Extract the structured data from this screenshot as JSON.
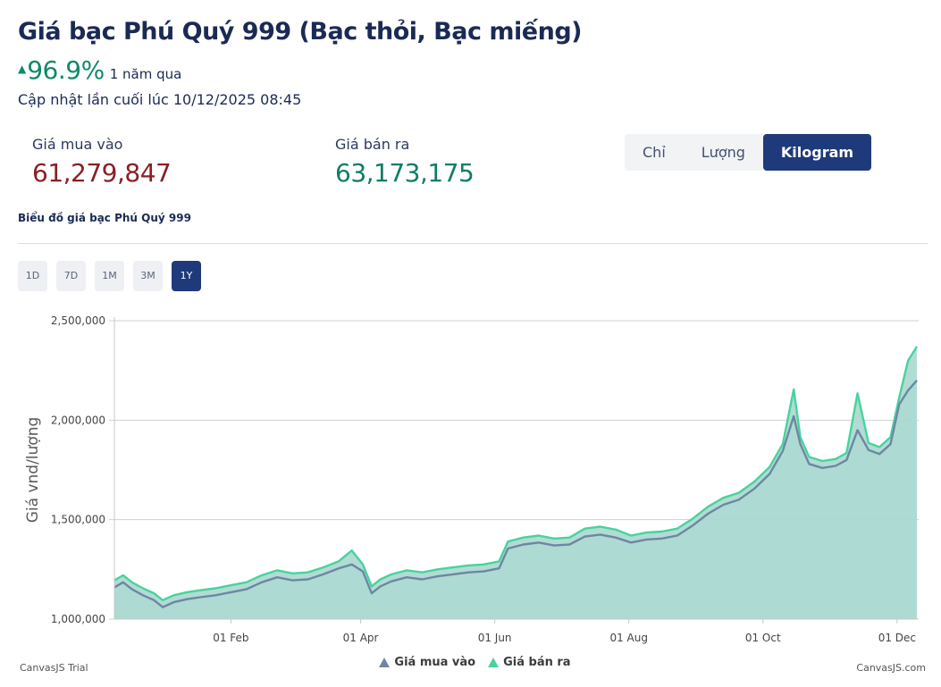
{
  "header": {
    "title": "Giá bạc Phú Quý 999 (Bạc thỏi, Bạc miếng)",
    "change_arrow": "▲",
    "change_pct": "96.9%",
    "change_period": "1 năm qua",
    "updated": "Cập nhật lần cuối lúc 10/12/2025 08:45"
  },
  "prices": {
    "buy_label": "Giá mua vào",
    "buy_value": "61,279,847",
    "sell_label": "Giá bán ra",
    "sell_value": "63,173,175"
  },
  "unit_tabs": [
    {
      "label": "Chỉ",
      "active": false
    },
    {
      "label": "Lượng",
      "active": false
    },
    {
      "label": "Kilogram",
      "active": true
    }
  ],
  "chart_heading": "Biểu đồ giá bạc Phú Quý 999",
  "range_tabs": [
    {
      "label": "1D",
      "active": false
    },
    {
      "label": "7D",
      "active": false
    },
    {
      "label": "1M",
      "active": false
    },
    {
      "label": "3M",
      "active": false
    },
    {
      "label": "1Y",
      "active": true
    }
  ],
  "colors": {
    "buy_series": "#6f86a3",
    "sell_series": "#47d49c",
    "area_fill": "#a9d8cf",
    "accent": "#1f3a7a",
    "up": "#0f8a6a"
  },
  "chart_data": {
    "type": "area",
    "ylabel": "Giá vnd/lượng",
    "ylim": [
      1000000,
      2500000
    ],
    "y_ticks": [
      1000000,
      1500000,
      2000000,
      2500000
    ],
    "y_tick_labels": [
      "1,000,000",
      "1,500,000",
      "2,000,000",
      "2,500,000"
    ],
    "x_range": [
      "2024-12-10",
      "2025-12-10"
    ],
    "x_ticks": [
      "2025-02-01",
      "2025-04-01",
      "2025-06-01",
      "2025-08-01",
      "2025-10-01",
      "2025-12-01"
    ],
    "x_tick_labels": [
      "01 Feb",
      "01 Apr",
      "01 Jun",
      "01 Aug",
      "01 Oct",
      "01 Dec"
    ],
    "grid": true,
    "legend_placement": "bottom-center",
    "series": [
      {
        "name": "Giá mua vào",
        "points": [
          [
            "2024-12-10",
            1160000
          ],
          [
            "2024-12-14",
            1185000
          ],
          [
            "2024-12-18",
            1150000
          ],
          [
            "2024-12-23",
            1120000
          ],
          [
            "2024-12-28",
            1095000
          ],
          [
            "2025-01-01",
            1060000
          ],
          [
            "2025-01-06",
            1085000
          ],
          [
            "2025-01-12",
            1100000
          ],
          [
            "2025-01-18",
            1110000
          ],
          [
            "2025-01-25",
            1120000
          ],
          [
            "2025-02-01",
            1135000
          ],
          [
            "2025-02-08",
            1150000
          ],
          [
            "2025-02-15",
            1185000
          ],
          [
            "2025-02-22",
            1210000
          ],
          [
            "2025-03-01",
            1195000
          ],
          [
            "2025-03-08",
            1200000
          ],
          [
            "2025-03-15",
            1225000
          ],
          [
            "2025-03-22",
            1255000
          ],
          [
            "2025-03-28",
            1275000
          ],
          [
            "2025-04-02",
            1240000
          ],
          [
            "2025-04-06",
            1130000
          ],
          [
            "2025-04-10",
            1165000
          ],
          [
            "2025-04-15",
            1190000
          ],
          [
            "2025-04-22",
            1210000
          ],
          [
            "2025-04-29",
            1200000
          ],
          [
            "2025-05-06",
            1215000
          ],
          [
            "2025-05-13",
            1225000
          ],
          [
            "2025-05-20",
            1235000
          ],
          [
            "2025-05-27",
            1240000
          ],
          [
            "2025-06-03",
            1255000
          ],
          [
            "2025-06-07",
            1355000
          ],
          [
            "2025-06-14",
            1375000
          ],
          [
            "2025-06-21",
            1385000
          ],
          [
            "2025-06-28",
            1370000
          ],
          [
            "2025-07-05",
            1375000
          ],
          [
            "2025-07-12",
            1415000
          ],
          [
            "2025-07-19",
            1425000
          ],
          [
            "2025-07-26",
            1410000
          ],
          [
            "2025-08-02",
            1385000
          ],
          [
            "2025-08-09",
            1400000
          ],
          [
            "2025-08-16",
            1405000
          ],
          [
            "2025-08-23",
            1420000
          ],
          [
            "2025-08-30",
            1470000
          ],
          [
            "2025-09-06",
            1530000
          ],
          [
            "2025-09-13",
            1575000
          ],
          [
            "2025-09-20",
            1600000
          ],
          [
            "2025-09-27",
            1655000
          ],
          [
            "2025-10-04",
            1730000
          ],
          [
            "2025-10-10",
            1845000
          ],
          [
            "2025-10-15",
            2020000
          ],
          [
            "2025-10-18",
            1880000
          ],
          [
            "2025-10-22",
            1780000
          ],
          [
            "2025-10-28",
            1760000
          ],
          [
            "2025-11-03",
            1770000
          ],
          [
            "2025-11-08",
            1800000
          ],
          [
            "2025-11-13",
            1950000
          ],
          [
            "2025-11-18",
            1850000
          ],
          [
            "2025-11-23",
            1830000
          ],
          [
            "2025-11-28",
            1880000
          ],
          [
            "2025-12-02",
            2080000
          ],
          [
            "2025-12-06",
            2150000
          ],
          [
            "2025-12-10",
            2200000
          ]
        ]
      },
      {
        "name": "Giá bán ra",
        "points": [
          [
            "2024-12-10",
            1195000
          ],
          [
            "2024-12-14",
            1220000
          ],
          [
            "2024-12-18",
            1185000
          ],
          [
            "2024-12-23",
            1155000
          ],
          [
            "2024-12-28",
            1130000
          ],
          [
            "2025-01-01",
            1095000
          ],
          [
            "2025-01-06",
            1120000
          ],
          [
            "2025-01-12",
            1135000
          ],
          [
            "2025-01-18",
            1145000
          ],
          [
            "2025-01-25",
            1155000
          ],
          [
            "2025-02-01",
            1170000
          ],
          [
            "2025-02-08",
            1185000
          ],
          [
            "2025-02-15",
            1220000
          ],
          [
            "2025-02-22",
            1245000
          ],
          [
            "2025-03-01",
            1230000
          ],
          [
            "2025-03-08",
            1235000
          ],
          [
            "2025-03-15",
            1260000
          ],
          [
            "2025-03-22",
            1290000
          ],
          [
            "2025-03-28",
            1345000
          ],
          [
            "2025-04-02",
            1275000
          ],
          [
            "2025-04-06",
            1165000
          ],
          [
            "2025-04-10",
            1200000
          ],
          [
            "2025-04-15",
            1225000
          ],
          [
            "2025-04-22",
            1245000
          ],
          [
            "2025-04-29",
            1235000
          ],
          [
            "2025-05-06",
            1250000
          ],
          [
            "2025-05-13",
            1260000
          ],
          [
            "2025-05-20",
            1270000
          ],
          [
            "2025-05-27",
            1275000
          ],
          [
            "2025-06-03",
            1290000
          ],
          [
            "2025-06-07",
            1390000
          ],
          [
            "2025-06-14",
            1410000
          ],
          [
            "2025-06-21",
            1420000
          ],
          [
            "2025-06-28",
            1405000
          ],
          [
            "2025-07-05",
            1410000
          ],
          [
            "2025-07-12",
            1455000
          ],
          [
            "2025-07-19",
            1465000
          ],
          [
            "2025-07-26",
            1450000
          ],
          [
            "2025-08-02",
            1420000
          ],
          [
            "2025-08-09",
            1435000
          ],
          [
            "2025-08-16",
            1440000
          ],
          [
            "2025-08-23",
            1455000
          ],
          [
            "2025-08-30",
            1505000
          ],
          [
            "2025-09-06",
            1565000
          ],
          [
            "2025-09-13",
            1610000
          ],
          [
            "2025-09-20",
            1635000
          ],
          [
            "2025-09-27",
            1690000
          ],
          [
            "2025-10-04",
            1765000
          ],
          [
            "2025-10-10",
            1880000
          ],
          [
            "2025-10-15",
            2155000
          ],
          [
            "2025-10-18",
            1915000
          ],
          [
            "2025-10-22",
            1815000
          ],
          [
            "2025-10-28",
            1795000
          ],
          [
            "2025-11-03",
            1805000
          ],
          [
            "2025-11-08",
            1835000
          ],
          [
            "2025-11-13",
            2135000
          ],
          [
            "2025-11-18",
            1885000
          ],
          [
            "2025-11-23",
            1865000
          ],
          [
            "2025-11-28",
            1915000
          ],
          [
            "2025-12-02",
            2115000
          ],
          [
            "2025-12-06",
            2300000
          ],
          [
            "2025-12-10",
            2370000
          ]
        ]
      }
    ]
  },
  "footer": {
    "credit_left": "CanvasJS Trial",
    "credit_right": "CanvasJS.com"
  }
}
